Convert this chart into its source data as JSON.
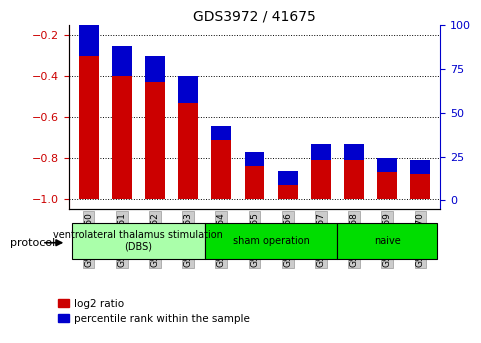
{
  "title": "GDS3972 / 41675",
  "samples": [
    "GSM634960",
    "GSM634961",
    "GSM634962",
    "GSM634963",
    "GSM634964",
    "GSM634965",
    "GSM634966",
    "GSM634967",
    "GSM634968",
    "GSM634969",
    "GSM634970"
  ],
  "log2_ratio": [
    -0.3,
    -0.4,
    -0.43,
    -0.53,
    -0.71,
    -0.84,
    -0.93,
    -0.81,
    -0.81,
    -0.87,
    -0.88
  ],
  "percentile_rank": [
    14,
    12,
    10,
    10,
    3,
    3,
    3,
    4,
    4,
    3,
    3
  ],
  "ylim_left": [
    -1.05,
    -0.15
  ],
  "ylim_right": [
    -5,
    100
  ],
  "yticks_left": [
    -1.0,
    -0.8,
    -0.6,
    -0.4,
    -0.2
  ],
  "yticks_right": [
    0,
    25,
    50,
    75,
    100
  ],
  "groups": [
    {
      "label": "ventrolateral thalamus stimulation\n(DBS)",
      "start": 0,
      "end": 3,
      "color": "#aaffaa"
    },
    {
      "label": "sham operation",
      "start": 4,
      "end": 7,
      "color": "#00dd00"
    },
    {
      "label": "naive",
      "start": 8,
      "end": 10,
      "color": "#00dd00"
    }
  ],
  "bar_width": 0.6,
  "red_color": "#cc0000",
  "blue_color": "#0000cc",
  "protocol_label": "protocol",
  "legend_items": [
    {
      "label": "log2 ratio",
      "color": "#cc0000"
    },
    {
      "label": "percentile rank within the sample",
      "color": "#0000cc"
    }
  ]
}
